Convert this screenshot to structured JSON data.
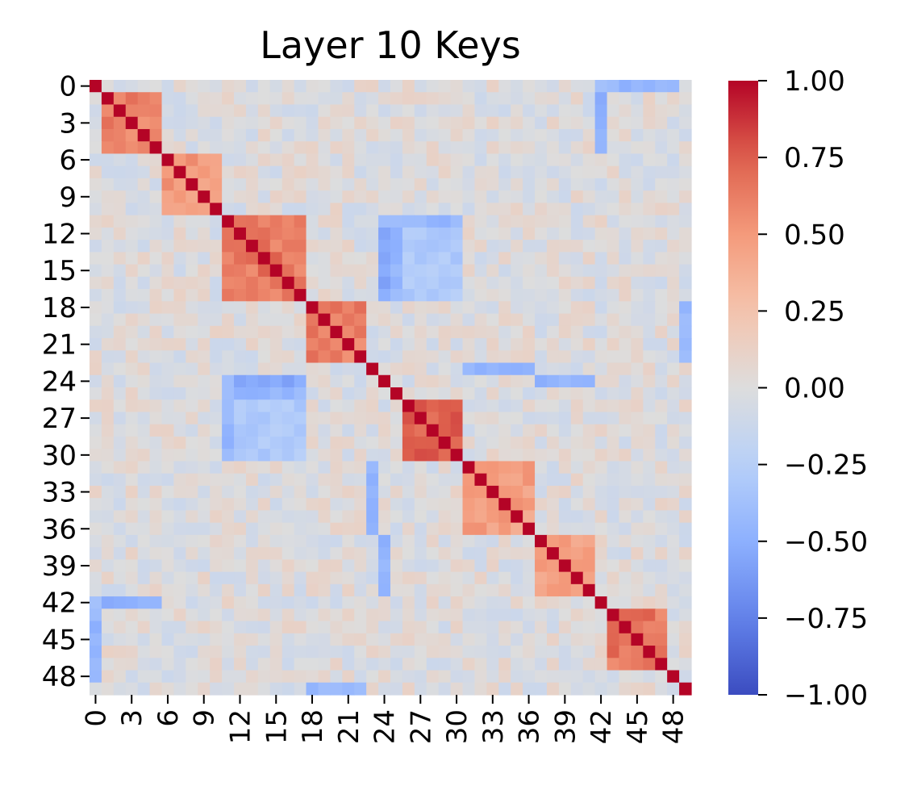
{
  "chart_data": {
    "type": "heatmap",
    "title": "Layer 10 Keys",
    "size": 50,
    "x_tick_labels": [
      "0",
      "3",
      "6",
      "9",
      "12",
      "15",
      "18",
      "21",
      "24",
      "27",
      "30",
      "33",
      "36",
      "39",
      "42",
      "45",
      "48"
    ],
    "y_tick_labels": [
      "0",
      "3",
      "6",
      "9",
      "12",
      "15",
      "18",
      "21",
      "24",
      "27",
      "30",
      "33",
      "36",
      "39",
      "42",
      "45",
      "48"
    ],
    "tick_step": 3,
    "colormap": "coolwarm",
    "vmin": -1.0,
    "vmax": 1.0,
    "colorbar_ticks": [
      "1.00",
      "0.75",
      "0.50",
      "0.25",
      "0.00",
      "−0.25",
      "−0.50",
      "−0.75",
      "−1.00"
    ],
    "colorbar_values": [
      1.0,
      0.75,
      0.5,
      0.25,
      0.0,
      -0.25,
      -0.5,
      -0.75,
      -1.0
    ],
    "block_boundaries": [
      0,
      1,
      6,
      11,
      18,
      23,
      24,
      25,
      26,
      31,
      37,
      42,
      43,
      48,
      49,
      50
    ],
    "diagonal_value": 1.0,
    "block_structure": [
      {
        "start": 1,
        "end": 6,
        "within": 0.6
      },
      {
        "start": 6,
        "end": 11,
        "within": 0.5
      },
      {
        "start": 11,
        "end": 18,
        "within": 0.65
      },
      {
        "start": 18,
        "end": 23,
        "within": 0.6
      },
      {
        "start": 26,
        "end": 31,
        "within": 0.75
      },
      {
        "start": 31,
        "end": 37,
        "within": 0.45
      },
      {
        "start": 37,
        "end": 42,
        "within": 0.45
      },
      {
        "start": 43,
        "end": 48,
        "within": 0.65
      }
    ],
    "cross_block": [
      {
        "rows": [
          0,
          1
        ],
        "cols": [
          42,
          49
        ],
        "value": -0.45
      },
      {
        "rows": [
          11,
          12
        ],
        "cols": [
          24,
          31
        ],
        "value": -0.45
      },
      {
        "rows": [
          12,
          18
        ],
        "cols": [
          24,
          25
        ],
        "value": -0.55
      },
      {
        "rows": [
          12,
          18
        ],
        "cols": [
          25,
          31
        ],
        "value": -0.3
      },
      {
        "rows": [
          23,
          24
        ],
        "cols": [
          31,
          37
        ],
        "value": -0.5
      },
      {
        "rows": [
          24,
          25
        ],
        "cols": [
          37,
          42
        ],
        "value": -0.45
      },
      {
        "rows": [
          25,
          26
        ],
        "cols": [
          11,
          18
        ],
        "value": -0.45
      },
      {
        "rows": [
          31,
          37
        ],
        "cols": [
          23,
          24
        ],
        "value": -0.45
      },
      {
        "rows": [
          42,
          43
        ],
        "cols": [
          0,
          6
        ],
        "value": -0.4
      },
      {
        "rows": [
          43,
          48
        ],
        "cols": [
          0,
          1
        ],
        "value": -0.45
      },
      {
        "rows": [
          49,
          50
        ],
        "cols": [
          18,
          23
        ],
        "value": -0.5
      },
      {
        "rows": [
          1,
          6
        ],
        "cols": [
          42,
          43
        ],
        "value": -0.5
      },
      {
        "rows": [
          18,
          23
        ],
        "cols": [
          49,
          50
        ],
        "value": -0.45
      }
    ]
  }
}
